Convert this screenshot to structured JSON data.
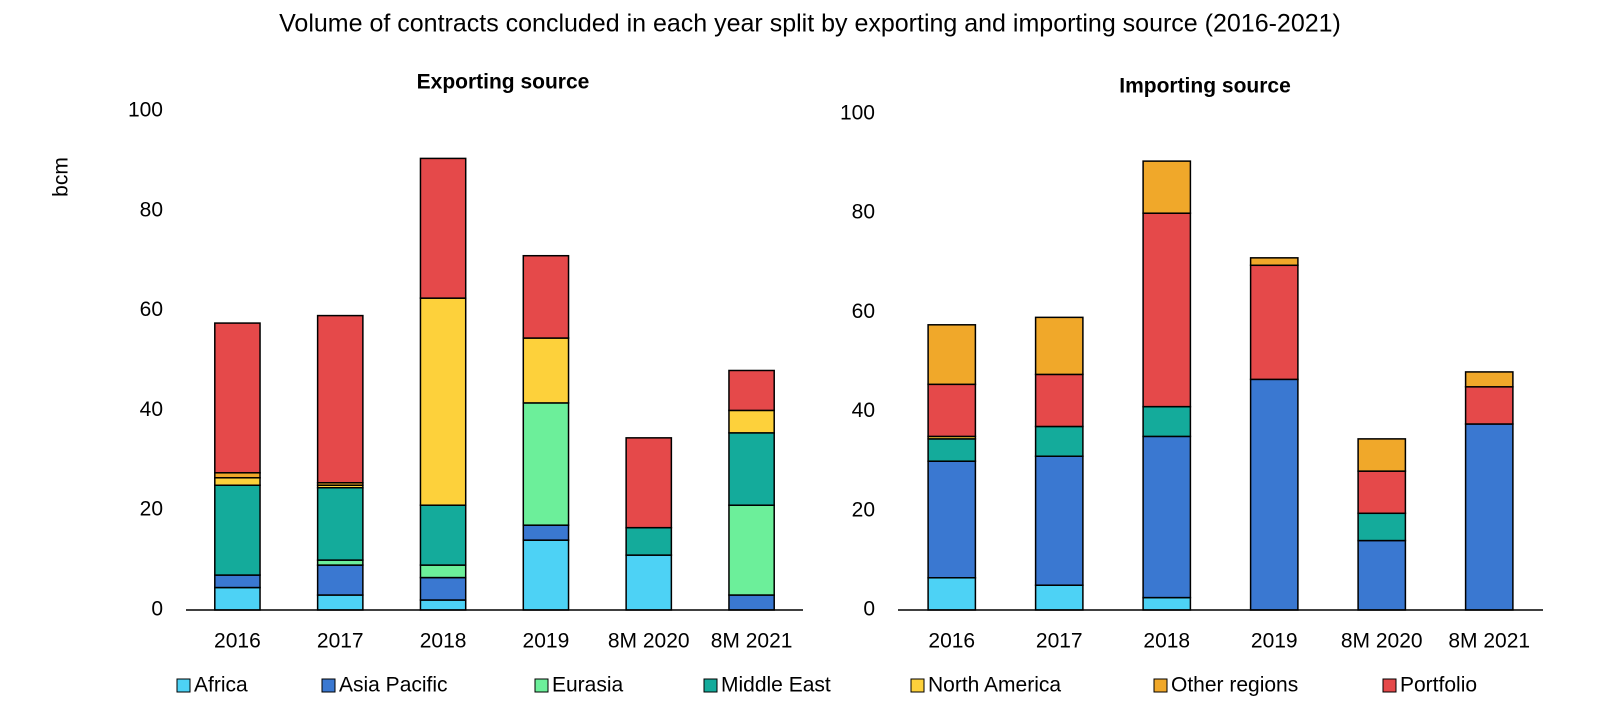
{
  "title": "Volume of contracts concluded in each year split by exporting and importing source (2016-2021)",
  "chart_data": [
    {
      "type": "bar",
      "stacked": true,
      "title": "Exporting source",
      "y_label": "bcm",
      "categories": [
        "2016",
        "2017",
        "2018",
        "2019",
        "8M 2020",
        "8M 2021"
      ],
      "ylim": [
        0,
        100
      ],
      "yticks": [
        0,
        20,
        40,
        60,
        80,
        100
      ],
      "series": [
        {
          "name": "Africa",
          "color": "#4dd2f5",
          "values": [
            4.5,
            3,
            2,
            14,
            11,
            0
          ]
        },
        {
          "name": "Asia Pacific",
          "color": "#3a78d1",
          "values": [
            2.5,
            6,
            4.5,
            3,
            0,
            3
          ]
        },
        {
          "name": "Eurasia",
          "color": "#6cef9a",
          "values": [
            0,
            1,
            2.5,
            24.5,
            0,
            18
          ]
        },
        {
          "name": "Middle East",
          "color": "#14ab9b",
          "values": [
            18,
            14.5,
            12,
            0,
            5.5,
            14.5
          ]
        },
        {
          "name": "North America",
          "color": "#fdd13b",
          "values": [
            1.5,
            0.5,
            41.5,
            13,
            0,
            4.5
          ]
        },
        {
          "name": "Other regions",
          "color": "#f0a82a",
          "values": [
            1,
            0.5,
            0,
            0,
            0,
            0
          ]
        },
        {
          "name": "Portfolio",
          "color": "#e5494a",
          "values": [
            30,
            33.5,
            28,
            16.5,
            18,
            8
          ]
        }
      ]
    },
    {
      "type": "bar",
      "stacked": true,
      "title": "Importing source",
      "categories": [
        "2016",
        "2017",
        "2018",
        "2019",
        "8M 2020",
        "8M 2021"
      ],
      "ylim": [
        0,
        100
      ],
      "yticks": [
        0,
        20,
        40,
        60,
        80,
        100
      ],
      "series": [
        {
          "color": "#4dd2f5",
          "values": [
            6.5,
            5,
            2.5,
            0,
            0,
            0
          ]
        },
        {
          "color": "#3a78d1",
          "values": [
            23.5,
            26,
            32.5,
            46.5,
            14,
            37.5
          ]
        },
        {
          "color": "#6cef9a",
          "values": [
            0,
            0,
            0,
            0,
            0,
            0
          ]
        },
        {
          "color": "#14ab9b",
          "values": [
            4.5,
            6,
            6,
            0,
            5.5,
            0
          ]
        },
        {
          "color": "#fdd13b",
          "values": [
            0.5,
            0,
            0,
            0,
            0,
            0
          ]
        },
        {
          "color": "#e5494a",
          "values": [
            10.5,
            10.5,
            39,
            23,
            8.5,
            7.5
          ]
        },
        {
          "color": "#f0a82a",
          "values": [
            12,
            11.5,
            10.5,
            1.5,
            6.5,
            3
          ]
        }
      ]
    }
  ]
}
